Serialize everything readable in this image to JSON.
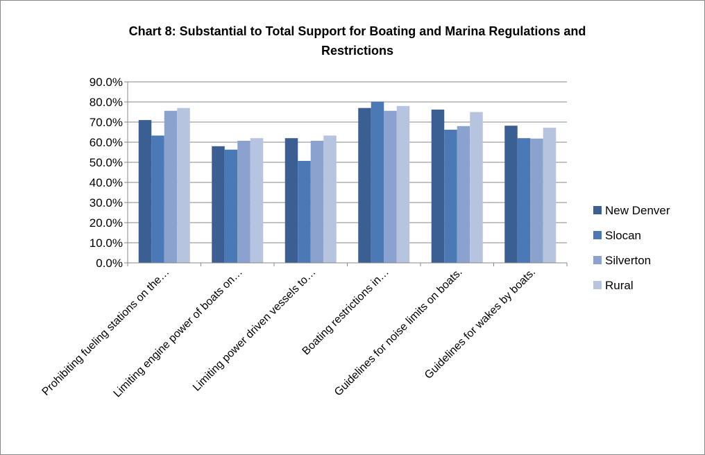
{
  "chart_data": {
    "type": "bar",
    "title_line1": "Chart 8: Substantial to Total Support for Boating and Marina Regulations and",
    "title_line2": "Restrictions",
    "categories": [
      "Prohibiting fueling stations on the…",
      "Limiting engine power of boats on…",
      "Limiting power driven vessels to…",
      "Boating restrictions in…",
      "Guidelines for noise limits on boats.",
      "Guidelines for wakes by boats."
    ],
    "series": [
      {
        "name": "New Denver",
        "color": "#3b5f93",
        "values": [
          0.71,
          0.58,
          0.62,
          0.77,
          0.762,
          0.682
        ]
      },
      {
        "name": "Slocan",
        "color": "#4a79b5",
        "values": [
          0.633,
          0.563,
          0.507,
          0.802,
          0.662,
          0.62
        ]
      },
      {
        "name": "Silverton",
        "color": "#8aa2cd",
        "values": [
          0.756,
          0.607,
          0.607,
          0.756,
          0.68,
          0.618
        ]
      },
      {
        "name": "Rural",
        "color": "#b7c4e0",
        "values": [
          0.77,
          0.62,
          0.633,
          0.78,
          0.75,
          0.672
        ]
      }
    ],
    "ylim": [
      0,
      0.9
    ],
    "ytick_labels": [
      "0.0%",
      "10.0%",
      "20.0%",
      "30.0%",
      "40.0%",
      "50.0%",
      "60.0%",
      "70.0%",
      "80.0%",
      "90.0%"
    ],
    "gridlines": true,
    "legend_position": "right"
  }
}
